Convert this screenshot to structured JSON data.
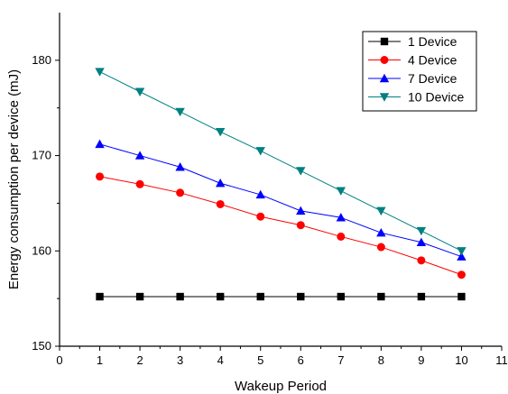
{
  "chart_data": {
    "type": "line",
    "title": "",
    "xlabel": "Wakeup Period",
    "ylabel": "Energy consumption per device (mJ)",
    "xlim": [
      0,
      11
    ],
    "ylim": [
      150,
      185
    ],
    "xticks": [
      "0",
      "1",
      "2",
      "3",
      "4",
      "5",
      "6",
      "7",
      "8",
      "9",
      "10",
      "11"
    ],
    "yticks": [
      "150",
      "160",
      "170",
      "180"
    ],
    "grid": false,
    "legend_position": "top-right",
    "x": [
      1,
      2,
      3,
      4,
      5,
      6,
      7,
      8,
      9,
      10
    ],
    "series": [
      {
        "name": "1 Device",
        "color": "#000000",
        "marker": "square",
        "values": [
          155.2,
          155.2,
          155.2,
          155.2,
          155.2,
          155.2,
          155.2,
          155.2,
          155.2,
          155.2
        ]
      },
      {
        "name": "4 Device",
        "color": "#ff0000",
        "marker": "circle",
        "values": [
          167.8,
          167.0,
          166.1,
          164.9,
          163.6,
          162.7,
          161.5,
          160.4,
          159.0,
          157.5
        ]
      },
      {
        "name": "7 Device",
        "color": "#0000ff",
        "marker": "triangle-up",
        "values": [
          171.2,
          170.0,
          168.8,
          167.1,
          165.9,
          164.2,
          163.5,
          161.9,
          160.9,
          159.4
        ]
      },
      {
        "name": "10 Device",
        "color": "#008080",
        "marker": "triangle-down",
        "values": [
          178.8,
          176.7,
          174.6,
          172.5,
          170.5,
          168.4,
          166.3,
          164.2,
          162.1,
          160.0
        ]
      }
    ]
  }
}
